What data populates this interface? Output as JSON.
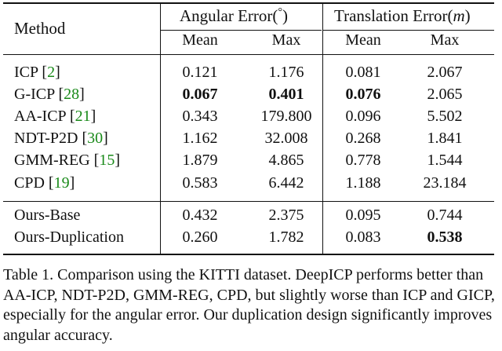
{
  "table": {
    "headers": {
      "method": "Method",
      "angular_pre": "Angular Error(",
      "angular_deg": "°",
      "angular_post": ")",
      "translation_pre": "Translation Error(",
      "translation_unit": "m",
      "translation_post": ")",
      "sub": [
        "Mean",
        "Max",
        "Mean",
        "Max"
      ]
    },
    "rows": [
      {
        "method": "ICP",
        "ref": "2",
        "values": [
          "0.121",
          "1.176",
          "0.081",
          "2.067"
        ],
        "bold": [
          false,
          false,
          false,
          false
        ]
      },
      {
        "method": "G-ICP",
        "ref": "28",
        "values": [
          "0.067",
          "0.401",
          "0.076",
          "2.065"
        ],
        "bold": [
          true,
          true,
          true,
          false
        ]
      },
      {
        "method": "AA-ICP",
        "ref": "21",
        "values": [
          "0.343",
          "179.800",
          "0.096",
          "5.502"
        ],
        "bold": [
          false,
          false,
          false,
          false
        ]
      },
      {
        "method": "NDT-P2D",
        "ref": "30",
        "values": [
          "1.162",
          "32.008",
          "0.268",
          "1.841"
        ],
        "bold": [
          false,
          false,
          false,
          false
        ]
      },
      {
        "method": "GMM-REG",
        "ref": "15",
        "values": [
          "1.879",
          "4.865",
          "0.778",
          "1.544"
        ],
        "bold": [
          false,
          false,
          false,
          false
        ]
      },
      {
        "method": "CPD",
        "ref": "19",
        "values": [
          "0.583",
          "6.442",
          "1.188",
          "23.184"
        ],
        "bold": [
          false,
          false,
          false,
          false
        ]
      },
      {
        "method": "Ours-Base",
        "ref": "",
        "values": [
          "0.432",
          "2.375",
          "0.095",
          "0.744"
        ],
        "bold": [
          false,
          false,
          false,
          false
        ]
      },
      {
        "method": "Ours-Duplication",
        "ref": "",
        "values": [
          "0.260",
          "1.782",
          "0.083",
          "0.538"
        ],
        "bold": [
          false,
          false,
          false,
          true
        ]
      }
    ]
  },
  "caption": "Table 1.  Comparison using the KITTI dataset. DeepICP performs better than AA-ICP, NDT-P2D, GMM-REG, CPD, but slightly worse than ICP and GICP, especially for the angular error.  Our duplication design significantly improves angular accuracy."
}
